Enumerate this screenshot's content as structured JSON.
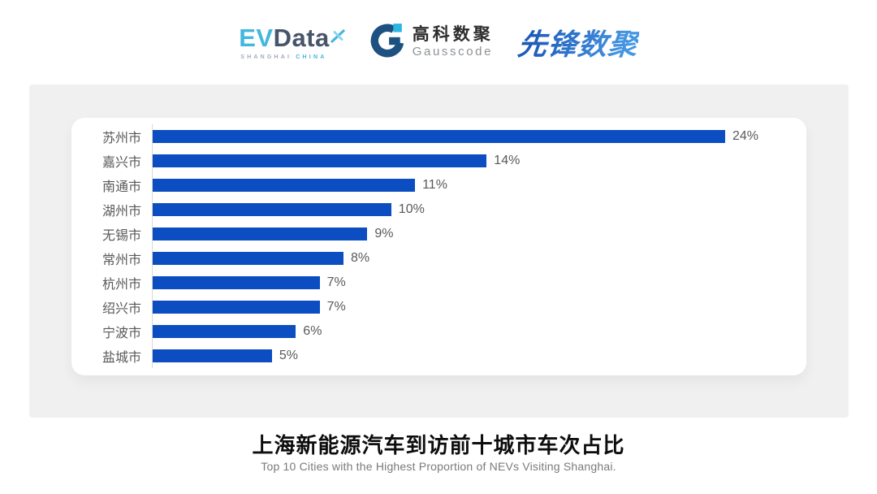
{
  "header": {
    "evdata": {
      "ev": "EV",
      "data": "Data",
      "sub_left": "SHANGHAI",
      "sub_right": "CHINA"
    },
    "gausscode": {
      "cn": "高科数聚",
      "en": "Gausscode"
    },
    "xianfeng": {
      "text": "先锋数聚"
    }
  },
  "chart_data": {
    "type": "bar",
    "orientation": "horizontal",
    "title": "上海新能源汽车到访前十城市车次占比",
    "categories": [
      "苏州市",
      "嘉兴市",
      "南通市",
      "湖州市",
      "无锡市",
      "常州市",
      "杭州市",
      "绍兴市",
      "宁波市",
      "盐城市"
    ],
    "values": [
      24,
      14,
      11,
      10,
      9,
      8,
      7,
      7,
      6,
      5
    ],
    "value_labels": [
      "24%",
      "14%",
      "11%",
      "10%",
      "9%",
      "8%",
      "7%",
      "7%",
      "6%",
      "5%"
    ],
    "value_suffix": "%",
    "xlim": [
      0,
      24
    ],
    "grid": false,
    "legend": false,
    "bar_color": "#0c4ec2",
    "axis_line_color": "#d8d8d8",
    "label_color": "#595959"
  },
  "footer": {
    "title": "上海新能源汽车到访前十城市车次占比",
    "subtitle": "Top 10 Cities with the Highest Proportion of  NEVs Visiting Shanghai."
  },
  "colors": {
    "panel_bg": "#f0f0f0",
    "card_bg": "#ffffff",
    "evdata_blue": "#41b8dd",
    "evdata_dark": "#47556a",
    "gausscode_dark": "#1d5181",
    "gausscode_cyan": "#2cb6e3",
    "xianfeng_blue": "#2a72cc"
  }
}
